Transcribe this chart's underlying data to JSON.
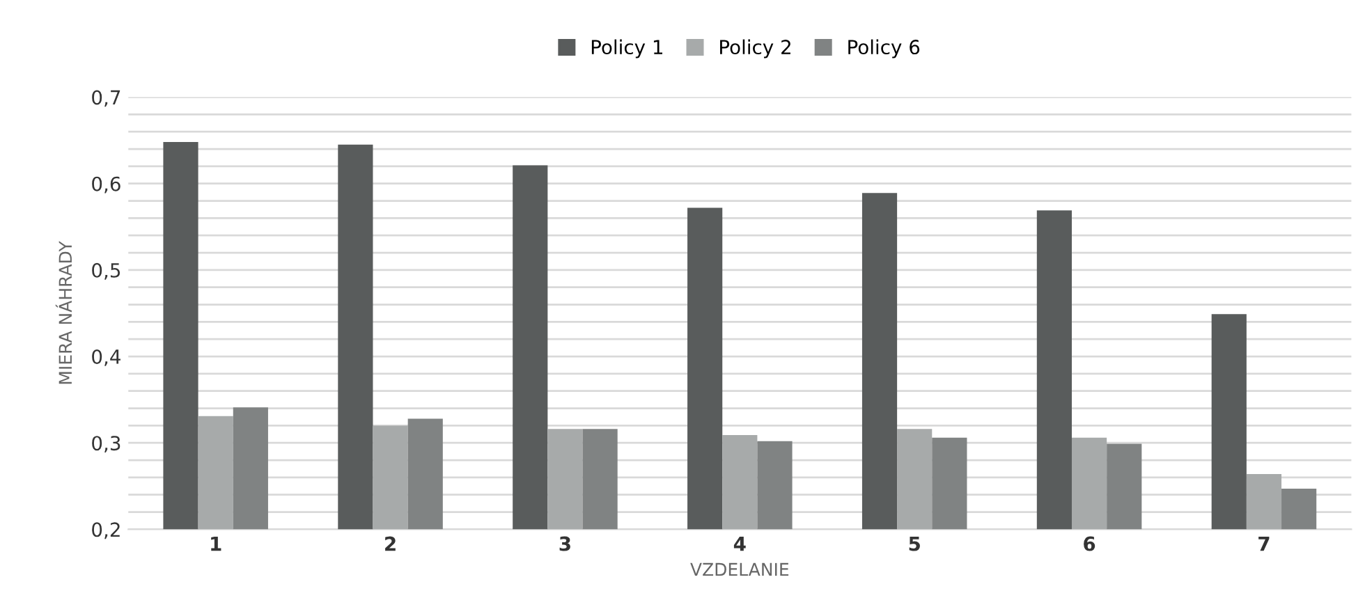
{
  "chart_data": {
    "type": "bar",
    "xlabel": "VZDELANIE",
    "ylabel": "MIERA NÁHRADY",
    "categories": [
      "1",
      "2",
      "3",
      "4",
      "5",
      "6",
      "7"
    ],
    "series": [
      {
        "name": "Policy 1",
        "color": "#595c5c",
        "values": [
          0.648,
          0.645,
          0.621,
          0.572,
          0.589,
          0.569,
          0.449
        ]
      },
      {
        "name": "Policy 2",
        "color": "#a7aaaa",
        "values": [
          0.331,
          0.32,
          0.316,
          0.309,
          0.316,
          0.306,
          0.264
        ]
      },
      {
        "name": "Policy 6",
        "color": "#808383",
        "values": [
          0.341,
          0.328,
          0.316,
          0.302,
          0.306,
          0.299,
          0.247
        ]
      }
    ],
    "ylim": [
      0.2,
      0.7
    ],
    "yticks": [
      {
        "value": 0.2,
        "label": "0,2"
      },
      {
        "value": 0.22,
        "label": null
      },
      {
        "value": 0.24,
        "label": null
      },
      {
        "value": 0.26,
        "label": null
      },
      {
        "value": 0.28,
        "label": null
      },
      {
        "value": 0.3,
        "label": "0,3"
      },
      {
        "value": 0.32,
        "label": null
      },
      {
        "value": 0.34,
        "label": null
      },
      {
        "value": 0.36,
        "label": null
      },
      {
        "value": 0.38,
        "label": null
      },
      {
        "value": 0.4,
        "label": "0,4"
      },
      {
        "value": 0.42,
        "label": null
      },
      {
        "value": 0.44,
        "label": null
      },
      {
        "value": 0.46,
        "label": null
      },
      {
        "value": 0.48,
        "label": null
      },
      {
        "value": 0.5,
        "label": "0,5"
      },
      {
        "value": 0.52,
        "label": null
      },
      {
        "value": 0.54,
        "label": null
      },
      {
        "value": 0.56,
        "label": null
      },
      {
        "value": 0.58,
        "label": null
      },
      {
        "value": 0.6,
        "label": "0,6"
      },
      {
        "value": 0.62,
        "label": null
      },
      {
        "value": 0.64,
        "label": null
      },
      {
        "value": 0.66,
        "label": null
      },
      {
        "value": 0.68,
        "label": null
      },
      {
        "value": 0.7,
        "label": "0,7"
      }
    ],
    "grid": "y",
    "legend": "top"
  }
}
